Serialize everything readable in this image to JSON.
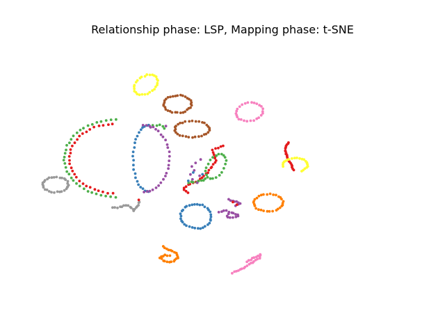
{
  "chart_data": {
    "type": "scatter",
    "title": "Relationship phase: LSP, Mapping phase: t-SNE",
    "xlabel": "",
    "ylabel": "",
    "axes_visible": false,
    "grid": false,
    "legend": "none",
    "xlim": [
      0,
      100
    ],
    "ylim": [
      0,
      100
    ],
    "clusters": [
      {
        "color": "#ffff33",
        "shape": "ring",
        "center": [
          26.2,
          82.7
        ],
        "radius": [
          3.0,
          4.2
        ],
        "rotation": -35,
        "n": 28
      },
      {
        "color": "#a65628",
        "shape": "ring",
        "center": [
          35.4,
          75.2
        ],
        "radius": [
          4.0,
          3.4
        ],
        "rotation": 0,
        "n": 32
      },
      {
        "color": "#f781bf",
        "shape": "ring",
        "center": [
          56.2,
          72.1
        ],
        "radius": [
          4.0,
          3.4
        ],
        "rotation": 30,
        "n": 26
      },
      {
        "color": "#a65628",
        "shape": "ring",
        "center": [
          39.6,
          65.4
        ],
        "radius": [
          5.0,
          3.2
        ],
        "rotation": 0,
        "n": 32
      },
      {
        "color": "#4daf4a",
        "shape": "points",
        "points": [
          [
            28.2,
            66.8
          ],
          [
            29.4,
            66.6
          ],
          [
            30.3,
            67.2
          ],
          [
            31.0,
            66.3
          ],
          [
            31.5,
            65.6
          ]
        ]
      },
      {
        "color": "#984ea3",
        "shape": "points",
        "points": [
          [
            27.6,
            66.0
          ],
          [
            31.9,
            66.6
          ]
        ]
      },
      {
        "color": "#e41a1c",
        "shape": "arc",
        "center": [
          17.0,
          54.0
        ],
        "radius": [
          13.0,
          13.5
        ],
        "start": 92,
        "end": 268,
        "n": 30
      },
      {
        "color": "#4daf4a",
        "shape": "arc",
        "center": [
          17.5,
          54.0
        ],
        "radius": [
          15.0,
          15.0
        ],
        "start": 90,
        "end": 270,
        "n": 34
      },
      {
        "color": "#377eb8",
        "shape": "arc",
        "center": [
          27.0,
          54.0
        ],
        "radius": [
          4.5,
          13.0
        ],
        "start": 90,
        "end": 270,
        "n": 24
      },
      {
        "color": "#984ea3",
        "shape": "arc",
        "center": [
          25.5,
          54.0
        ],
        "radius": [
          7.5,
          13.0
        ],
        "start": -90,
        "end": 90,
        "n": 26
      },
      {
        "color": "#e41a1c",
        "shape": "curve",
        "points": [
          [
            48.5,
            59.0
          ],
          [
            45.5,
            57.2
          ],
          [
            46.5,
            53.0
          ],
          [
            44.0,
            48.5
          ],
          [
            41.5,
            45.5
          ],
          [
            38.5,
            43.8
          ],
          [
            37.0,
            42.0
          ],
          [
            38.5,
            40.5
          ]
        ],
        "n": 30
      },
      {
        "color": "#4daf4a",
        "shape": "ring",
        "center": [
          46.5,
          51.0
        ],
        "radius": [
          2.5,
          5.0
        ],
        "rotation": -20,
        "n": 20
      },
      {
        "color": "#4daf4a",
        "shape": "curve",
        "points": [
          [
            38.5,
            44.6
          ],
          [
            41.5,
            45.0
          ],
          [
            43.5,
            46.0
          ]
        ],
        "n": 8
      },
      {
        "color": "#984ea3",
        "shape": "points",
        "points": [
          [
            39.4,
            50.7
          ],
          [
            40.3,
            49.5
          ],
          [
            39.0,
            47.9
          ],
          [
            40.6,
            52.3
          ],
          [
            41.7,
            47.1
          ],
          [
            41.0,
            44.4
          ],
          [
            39.8,
            46.0
          ],
          [
            42.0,
            53.4
          ]
        ]
      },
      {
        "color": "#377eb8",
        "shape": "points",
        "points": [
          [
            40.0,
            48.6
          ],
          [
            38.6,
            45.2
          ],
          [
            42.6,
            48.0
          ]
        ]
      },
      {
        "color": "#e41a1c",
        "shape": "curve",
        "points": [
          [
            67.5,
            60.2
          ],
          [
            66.6,
            57.8
          ],
          [
            67.0,
            54.6
          ],
          [
            68.2,
            52.0
          ],
          [
            69.0,
            49.7
          ]
        ],
        "n": 22
      },
      {
        "color": "#ffff33",
        "shape": "arc",
        "center": [
          69.5,
          51.5
        ],
        "radius": [
          3.6,
          2.6
        ],
        "start": 300,
        "end": 550,
        "n": 22
      },
      {
        "color": "#999999",
        "shape": "ring",
        "center": [
          0.0,
          43.8
        ],
        "radius": [
          3.7,
          2.9
        ],
        "rotation": 0,
        "n": 30
      },
      {
        "color": "#999999",
        "shape": "curve",
        "points": [
          [
            16.6,
            34.8
          ],
          [
            18.8,
            35.0
          ],
          [
            20.4,
            35.8
          ],
          [
            21.8,
            35.2
          ],
          [
            22.8,
            33.6
          ],
          [
            23.8,
            35.8
          ],
          [
            24.4,
            37.2
          ]
        ],
        "n": 18
      },
      {
        "color": "#e41a1c",
        "shape": "points",
        "points": [
          [
            24.0,
            38.0
          ]
        ]
      },
      {
        "color": "#377eb8",
        "shape": "ring",
        "center": [
          40.7,
          31.5
        ],
        "radius": [
          4.4,
          4.8
        ],
        "rotation": 10,
        "n": 34
      },
      {
        "color": "#984ea3",
        "shape": "curve",
        "points": [
          [
            50.3,
            37.9
          ],
          [
            52.0,
            37.3
          ],
          [
            53.5,
            36.6
          ],
          [
            52.3,
            35.6
          ]
        ],
        "n": 10
      },
      {
        "color": "#984ea3",
        "shape": "curve",
        "points": [
          [
            47.3,
            33.1
          ],
          [
            49.3,
            33.6
          ],
          [
            51.5,
            32.8
          ],
          [
            53.2,
            31.7
          ],
          [
            51.7,
            30.8
          ],
          [
            49.5,
            31.4
          ],
          [
            50.0,
            32.3
          ]
        ],
        "n": 16
      },
      {
        "color": "#e41a1c",
        "shape": "points",
        "points": [
          [
            51.4,
            37.2
          ],
          [
            52.4,
            36.0
          ]
        ]
      },
      {
        "color": "#ff7f00",
        "shape": "ring",
        "center": [
          61.7,
          36.7
        ],
        "radius": [
          4.3,
          3.4
        ],
        "rotation": 0,
        "n": 30
      },
      {
        "color": "#ff7f00",
        "shape": "curve",
        "points": [
          [
            31.2,
            19.8
          ],
          [
            32.8,
            18.4
          ],
          [
            35.0,
            17.0
          ],
          [
            35.5,
            15.2
          ],
          [
            34.0,
            13.6
          ],
          [
            31.8,
            13.8
          ],
          [
            30.2,
            15.2
          ],
          [
            31.3,
            16.3
          ],
          [
            33.0,
            16.2
          ]
        ],
        "n": 26
      },
      {
        "color": "#f781bf",
        "shape": "curve",
        "points": [
          [
            51.2,
            9.4
          ],
          [
            53.0,
            10.4
          ],
          [
            55.0,
            11.8
          ],
          [
            57.2,
            13.6
          ],
          [
            59.0,
            15.0
          ],
          [
            59.4,
            16.8
          ],
          [
            57.8,
            15.6
          ],
          [
            55.6,
            13.8
          ]
        ],
        "n": 26
      }
    ]
  }
}
